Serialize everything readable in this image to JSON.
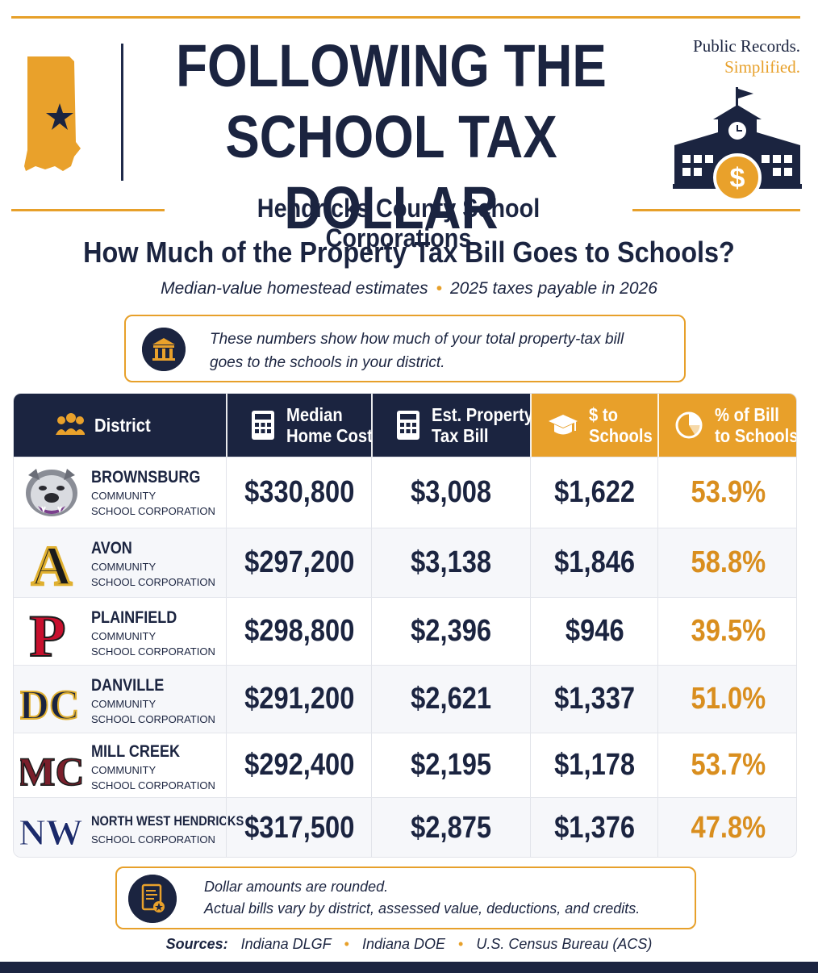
{
  "header": {
    "title_line1": "FOLLOWING THE",
    "title_line2": "SCHOOL TAX DOLLAR",
    "brand_line1": "Public Records.",
    "brand_line2": "Simplified.",
    "subtitle": "Hendricks County School Corporations",
    "question": "How Much of the Property Tax Bill Goes to Schools?",
    "tagline_left": "Median-value homestead estimates",
    "tagline_right": "2025 taxes payable in 2026"
  },
  "info": {
    "line1": "These numbers show how much of your total property-tax bill",
    "line2": "goes to the schools in your district."
  },
  "table": {
    "columns": {
      "district": "District",
      "home_cost_1": "Median",
      "home_cost_2": "Home Cost",
      "tax_bill_1": "Est. Property",
      "tax_bill_2": "Tax Bill",
      "to_schools_1": "$ to",
      "to_schools_2": "Schools",
      "pct_1": "% of Bill",
      "pct_2": "to Schools"
    },
    "rows": [
      {
        "name": "BROWNSBURG",
        "sub1": "COMMUNITY",
        "sub2": "SCHOOL CORPORATION",
        "home": "$330,800",
        "bill": "$3,008",
        "schools": "$1,622",
        "pct": "53.9%"
      },
      {
        "name": "AVON",
        "sub1": "COMMUNITY",
        "sub2": "SCHOOL CORPORATION",
        "home": "$297,200",
        "bill": "$3,138",
        "schools": "$1,846",
        "pct": "58.8%"
      },
      {
        "name": "PLAINFIELD",
        "sub1": "COMMUNITY",
        "sub2": "SCHOOL CORPORATION",
        "home": "$298,800",
        "bill": "$2,396",
        "schools": "$946",
        "pct": "39.5%"
      },
      {
        "name": "DANVILLE",
        "sub1": "COMMUNITY",
        "sub2": "SCHOOL CORPORATION",
        "home": "$291,200",
        "bill": "$2,621",
        "schools": "$1,337",
        "pct": "51.0%"
      },
      {
        "name": "MILL CREEK",
        "sub1": "COMMUNITY",
        "sub2": "SCHOOL CORPORATION",
        "home": "$292,400",
        "bill": "$2,195",
        "schools": "$1,178",
        "pct": "53.7%"
      },
      {
        "name": "NORTH WEST HENDRICKS",
        "sub1": "SCHOOL CORPORATION",
        "sub2": "",
        "home": "$317,500",
        "bill": "$2,875",
        "schools": "$1,376",
        "pct": "47.8%"
      }
    ],
    "logos": {
      "avon": "A",
      "plainfield": "P",
      "danville": "DC",
      "mill_creek": "MC",
      "north_west": "NW"
    }
  },
  "note": {
    "line1": "Dollar amounts are rounded.",
    "line2": "Actual bills vary by district, assessed value, deductions, and credits."
  },
  "sources": {
    "label": "Sources:",
    "s1": "Indiana DLGF",
    "s2": "Indiana DOE",
    "s3": "U.S. Census Bureau (ACS)"
  },
  "colors": {
    "navy": "#1b2440",
    "gold": "#e7a02a"
  },
  "icons": [
    "indiana-map-icon",
    "star-icon",
    "school-building-icon",
    "dollar-coin-icon",
    "courthouse-icon",
    "people-icon",
    "calculator-icon",
    "graduation-cap-icon",
    "pie-chart-icon",
    "bulldog-icon",
    "document-icon"
  ]
}
